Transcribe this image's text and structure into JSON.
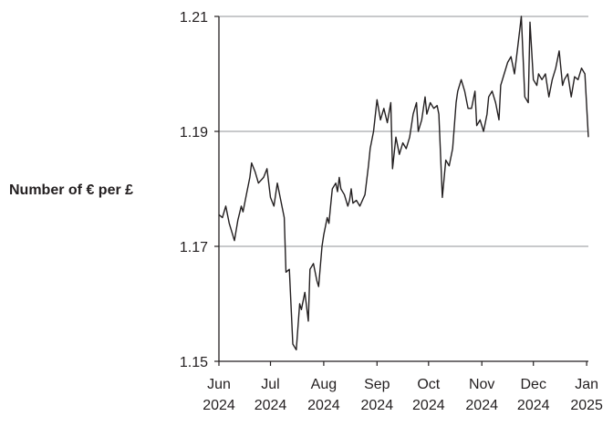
{
  "chart_data": {
    "type": "line",
    "ylabel": "Number of € per £",
    "xlabel": "",
    "title": "",
    "ylim": [
      1.15,
      1.21
    ],
    "yticks": [
      1.15,
      1.17,
      1.19,
      1.21
    ],
    "ytick_labels": [
      "1.15",
      "1.17",
      "1.19",
      "1.21"
    ],
    "xtick_labels": [
      {
        "month": "Jun",
        "year": "2024",
        "date": "2024-06-01"
      },
      {
        "month": "Jul",
        "year": "2024",
        "date": "2024-07-01"
      },
      {
        "month": "Aug",
        "year": "2024",
        "date": "2024-08-01"
      },
      {
        "month": "Sep",
        "year": "2024",
        "date": "2024-09-01"
      },
      {
        "month": "Oct",
        "year": "2024",
        "date": "2024-10-01"
      },
      {
        "month": "Nov",
        "year": "2024",
        "date": "2024-11-01"
      },
      {
        "month": "Dec",
        "year": "2024",
        "date": "2024-12-01"
      },
      {
        "month": "Jan",
        "year": "2025",
        "date": "2025-01-01"
      }
    ],
    "xlim": [
      "2024-06-01",
      "2025-01-02"
    ],
    "grid": "horizontal",
    "line_color": "#231f20",
    "grid_color": "#a7a9ac",
    "series": [
      {
        "x": [
          "2024-06-01",
          "2024-06-03",
          "2024-06-05",
          "2024-06-07",
          "2024-06-08",
          "2024-06-10",
          "2024-06-12",
          "2024-06-14",
          "2024-06-15",
          "2024-06-17",
          "2024-06-19",
          "2024-06-20",
          "2024-06-22",
          "2024-06-24",
          "2024-06-27",
          "2024-06-29",
          "2024-07-01",
          "2024-07-03",
          "2024-07-05",
          "2024-07-07",
          "2024-07-09",
          "2024-07-10",
          "2024-07-12",
          "2024-07-14",
          "2024-07-16",
          "2024-07-18",
          "2024-07-19",
          "2024-07-21",
          "2024-07-23",
          "2024-07-24",
          "2024-07-26",
          "2024-07-28",
          "2024-07-29",
          "2024-07-31",
          "2024-08-01",
          "2024-08-03",
          "2024-08-04",
          "2024-08-05",
          "2024-08-06",
          "2024-08-08",
          "2024-08-09",
          "2024-08-10",
          "2024-08-11",
          "2024-08-13",
          "2024-08-15",
          "2024-08-16",
          "2024-08-17",
          "2024-08-18",
          "2024-08-20",
          "2024-08-22",
          "2024-08-25",
          "2024-08-27",
          "2024-08-28",
          "2024-08-30",
          "2024-09-01",
          "2024-09-03",
          "2024-09-05",
          "2024-09-07",
          "2024-09-09",
          "2024-09-10",
          "2024-09-12",
          "2024-09-14",
          "2024-09-16",
          "2024-09-18",
          "2024-09-20",
          "2024-09-22",
          "2024-09-24",
          "2024-09-25",
          "2024-09-27",
          "2024-09-29",
          "2024-09-30",
          "2024-10-02",
          "2024-10-04",
          "2024-10-06",
          "2024-10-07",
          "2024-10-09",
          "2024-10-11",
          "2024-10-13",
          "2024-10-15",
          "2024-10-17",
          "2024-10-18",
          "2024-10-20",
          "2024-10-22",
          "2024-10-24",
          "2024-10-26",
          "2024-10-28",
          "2024-10-29",
          "2024-10-31",
          "2024-11-02",
          "2024-11-04",
          "2024-11-05",
          "2024-11-07",
          "2024-11-09",
          "2024-11-11",
          "2024-11-12",
          "2024-11-14",
          "2024-11-16",
          "2024-11-18",
          "2024-11-20",
          "2024-11-22",
          "2024-11-24",
          "2024-11-26",
          "2024-11-28",
          "2024-11-29",
          "2024-12-01",
          "2024-12-03",
          "2024-12-04",
          "2024-12-06",
          "2024-12-08",
          "2024-12-10",
          "2024-12-12",
          "2024-12-14",
          "2024-12-16",
          "2024-12-18",
          "2024-12-19",
          "2024-12-21",
          "2024-12-23",
          "2024-12-25",
          "2024-12-27",
          "2024-12-29",
          "2024-12-31",
          "2025-01-02"
        ],
        "y": [
          1.1755,
          1.175,
          1.177,
          1.174,
          1.173,
          1.171,
          1.1745,
          1.177,
          1.176,
          1.179,
          1.182,
          1.1845,
          1.183,
          1.181,
          1.182,
          1.1835,
          1.1785,
          1.177,
          1.181,
          1.178,
          1.175,
          1.1655,
          1.166,
          1.153,
          1.152,
          1.16,
          1.159,
          1.162,
          1.157,
          1.166,
          1.167,
          1.164,
          1.163,
          1.17,
          1.172,
          1.175,
          1.174,
          1.177,
          1.18,
          1.181,
          1.1795,
          1.182,
          1.18,
          1.179,
          1.177,
          1.178,
          1.18,
          1.1775,
          1.178,
          1.177,
          1.179,
          1.184,
          1.187,
          1.19,
          1.1955,
          1.192,
          1.194,
          1.1915,
          1.195,
          1.1835,
          1.189,
          1.186,
          1.188,
          1.187,
          1.189,
          1.193,
          1.195,
          1.19,
          1.192,
          1.196,
          1.193,
          1.195,
          1.194,
          1.1945,
          1.193,
          1.1785,
          1.185,
          1.184,
          1.187,
          1.195,
          1.197,
          1.199,
          1.197,
          1.194,
          1.194,
          1.197,
          1.191,
          1.192,
          1.19,
          1.193,
          1.196,
          1.197,
          1.195,
          1.192,
          1.198,
          1.2,
          1.202,
          1.203,
          1.2,
          1.205,
          1.21,
          1.196,
          1.195,
          1.209,
          1.199,
          1.198,
          1.2,
          1.199,
          1.2,
          1.196,
          1.199,
          1.201,
          1.204,
          1.198,
          1.199,
          1.2,
          1.196,
          1.1995,
          1.199,
          1.201,
          1.2,
          1.189
        ]
      }
    ]
  }
}
